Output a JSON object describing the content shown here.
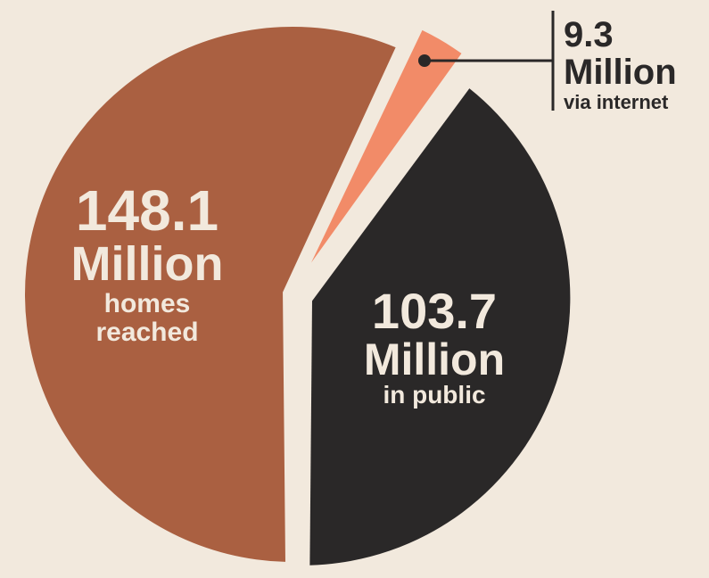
{
  "chart_data": {
    "type": "pie",
    "title": "",
    "slices": [
      {
        "value": 148.1,
        "number": "148.1",
        "unit": "Million",
        "caption_lines": [
          "homes",
          "reached"
        ],
        "color": "#aa6041",
        "text_color": "#f2e9dd"
      },
      {
        "value": 9.3,
        "number": "9.3",
        "unit": "Million",
        "caption_lines": [
          "via internet"
        ],
        "color": "#f28b68",
        "text_color": "#2a2828"
      },
      {
        "value": 103.7,
        "number": "103.7",
        "unit": "Million",
        "caption_lines": [
          "in public"
        ],
        "color": "#2a2828",
        "text_color": "#f2e9dd"
      }
    ],
    "background": "#f2e9dd",
    "legend": "none"
  }
}
